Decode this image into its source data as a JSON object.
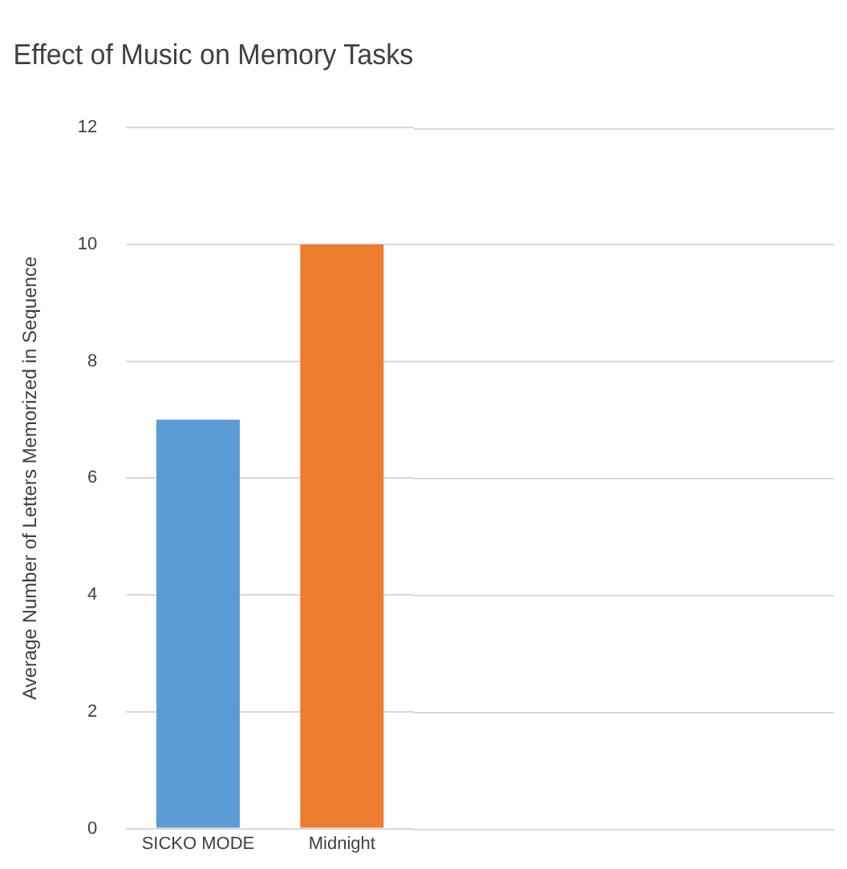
{
  "chart_data": {
    "type": "bar",
    "title": "Effect of Music on Memory Tasks",
    "ylabel": "Average Number of Letters Memorized in Sequence",
    "categories": [
      "SICKO MODE",
      "Midnight"
    ],
    "values": [
      7,
      10
    ],
    "colors": [
      "#5b9bd5",
      "#ed7d31"
    ],
    "ylim": [
      0,
      12
    ],
    "yticks": [
      0,
      2,
      4,
      6,
      8,
      10,
      12
    ],
    "grid": "y",
    "legend": false
  }
}
